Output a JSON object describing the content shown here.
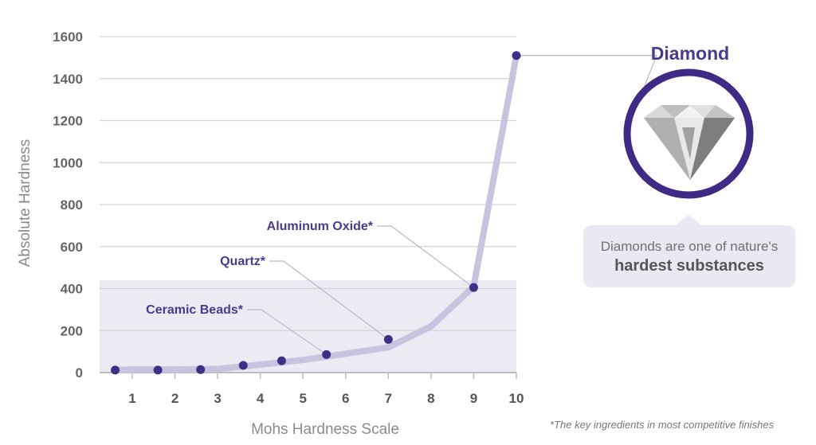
{
  "chart_data": {
    "type": "line",
    "xlabel": "Mohs Hardness Scale",
    "ylabel": "Absolute Hardness",
    "x_ticks": [
      "1",
      "2",
      "3",
      "4",
      "5",
      "6",
      "7",
      "8",
      "9",
      "10"
    ],
    "y_ticks": [
      "0",
      "200",
      "400",
      "600",
      "800",
      "1000",
      "1200",
      "1400",
      "1600"
    ],
    "xlim": [
      0.6,
      10
    ],
    "ylim": [
      0,
      1600
    ],
    "grid": true,
    "highlight_band": [
      0,
      440
    ],
    "series": [
      {
        "x": [
          1,
          2,
          3,
          4,
          5,
          6,
          7,
          8,
          9,
          10
        ],
        "values": [
          15,
          15,
          17,
          38,
          60,
          90,
          120,
          220,
          410,
          1510
        ]
      }
    ],
    "points": [
      {
        "x": 0.6,
        "y": 12
      },
      {
        "x": 1.6,
        "y": 12
      },
      {
        "x": 2.6,
        "y": 14
      },
      {
        "x": 3.6,
        "y": 34
      },
      {
        "x": 4.5,
        "y": 56
      },
      {
        "x": 5.55,
        "y": 86
      },
      {
        "x": 7,
        "y": 158
      },
      {
        "x": 9,
        "y": 405
      },
      {
        "x": 10,
        "y": 1510
      }
    ],
    "annotations": [
      {
        "label": "Ceramic Beads*",
        "x": 5.55,
        "y": 86
      },
      {
        "label": "Quartz*",
        "x": 7,
        "y": 158
      },
      {
        "label": "Aluminum Oxide*",
        "x": 9,
        "y": 405
      },
      {
        "label": "Diamond",
        "x": 10,
        "y": 1510
      }
    ],
    "colors": {
      "line": "#c9c3e0",
      "point": "#3f2f86",
      "band": "#ecebf3",
      "accent": "#4a3a8c"
    }
  },
  "diamond_callout": {
    "title": "Diamond",
    "caption_line1": "Diamonds are one of nature's",
    "caption_line2": "hardest substances"
  },
  "footnote": "*The key ingredients in most competitive finishes"
}
